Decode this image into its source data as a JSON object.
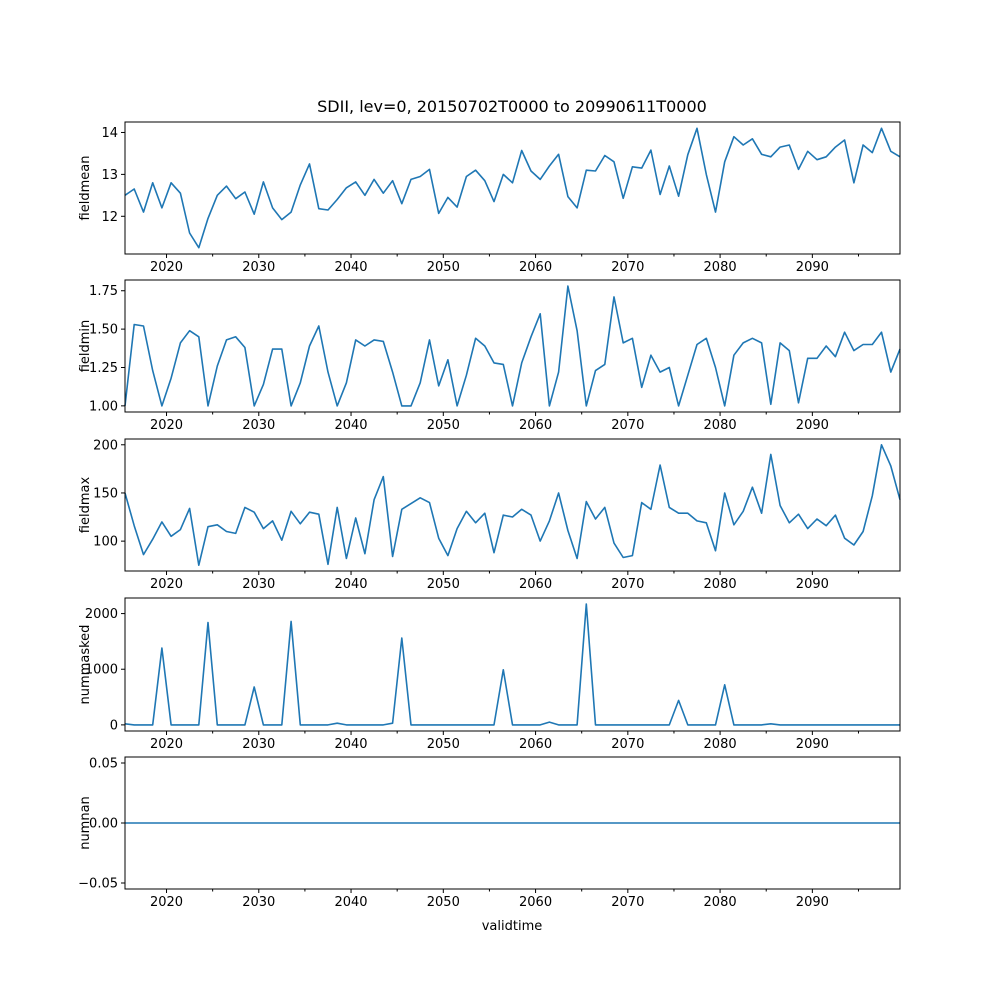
{
  "title": "SDII, lev=0, 20150702T0000 to 20990611T0000",
  "xlabel": "validtime",
  "xticks": [
    2020,
    2030,
    2040,
    2050,
    2060,
    2070,
    2080,
    2090
  ],
  "colors": {
    "line": "#1f77b4",
    "axis": "#000000",
    "background": "#ffffff"
  },
  "chart_data": [
    {
      "type": "line",
      "ylabel": "fieldmean",
      "xlim": [
        2015.5,
        2099.5
      ],
      "ylim": [
        11.1,
        14.25
      ],
      "yticks": [
        12,
        13,
        14
      ],
      "ytick_labels": [
        "12",
        "13",
        "14"
      ],
      "x_start": 2015.5,
      "x_step": 1,
      "values": [
        12.5,
        12.65,
        12.1,
        12.8,
        12.2,
        12.8,
        12.55,
        11.6,
        11.25,
        11.95,
        12.5,
        12.72,
        12.42,
        12.58,
        12.05,
        12.82,
        12.2,
        11.92,
        12.1,
        12.75,
        13.25,
        12.18,
        12.15,
        12.4,
        12.68,
        12.82,
        12.5,
        12.88,
        12.55,
        12.85,
        12.3,
        12.88,
        12.95,
        13.12,
        12.07,
        12.45,
        12.22,
        12.95,
        13.1,
        12.85,
        12.35,
        13.0,
        12.8,
        13.57,
        13.08,
        12.88,
        13.2,
        13.48,
        12.47,
        12.2,
        13.1,
        13.08,
        13.45,
        13.3,
        12.43,
        13.18,
        13.15,
        13.58,
        12.52,
        13.2,
        12.48,
        13.47,
        14.1,
        13.0,
        12.1,
        13.3,
        13.9,
        13.7,
        13.85,
        13.48,
        13.42,
        13.65,
        13.7,
        13.12,
        13.55,
        13.35,
        13.42,
        13.65,
        13.82,
        12.8,
        13.7,
        13.52,
        14.1,
        13.55,
        13.42
      ]
    },
    {
      "type": "line",
      "ylabel": "fieldmin",
      "xlim": [
        2015.5,
        2099.5
      ],
      "ylim": [
        0.96,
        1.82
      ],
      "yticks": [
        1.0,
        1.25,
        1.5,
        1.75
      ],
      "ytick_labels": [
        "1.00",
        "1.25",
        "1.50",
        "1.75"
      ],
      "x_start": 2015.5,
      "x_step": 1,
      "values": [
        1.0,
        1.53,
        1.52,
        1.23,
        1.0,
        1.18,
        1.41,
        1.49,
        1.45,
        1.0,
        1.26,
        1.43,
        1.45,
        1.38,
        1.0,
        1.14,
        1.37,
        1.37,
        1.0,
        1.15,
        1.39,
        1.52,
        1.22,
        1.0,
        1.15,
        1.43,
        1.39,
        1.43,
        1.42,
        1.22,
        1.0,
        1.0,
        1.15,
        1.43,
        1.13,
        1.3,
        1.0,
        1.2,
        1.44,
        1.39,
        1.28,
        1.27,
        1.0,
        1.28,
        1.45,
        1.6,
        1.0,
        1.22,
        1.78,
        1.49,
        1.0,
        1.23,
        1.27,
        1.71,
        1.41,
        1.44,
        1.12,
        1.33,
        1.22,
        1.25,
        1.0,
        1.2,
        1.4,
        1.44,
        1.25,
        1.0,
        1.33,
        1.41,
        1.44,
        1.41,
        1.01,
        1.41,
        1.36,
        1.02,
        1.31,
        1.31,
        1.39,
        1.32,
        1.48,
        1.36,
        1.4,
        1.4,
        1.48,
        1.22,
        1.37
      ]
    },
    {
      "type": "line",
      "ylabel": "fieldmax",
      "xlim": [
        2015.5,
        2099.5
      ],
      "ylim": [
        69,
        206
      ],
      "yticks": [
        100,
        150,
        200
      ],
      "ytick_labels": [
        "100",
        "150",
        "200"
      ],
      "x_start": 2015.5,
      "x_step": 1,
      "values": [
        150,
        116,
        86,
        102,
        120,
        105,
        112,
        134,
        75,
        115,
        117,
        110,
        108,
        135,
        130,
        113,
        121,
        101,
        131,
        118,
        130,
        128,
        76,
        135,
        82,
        124,
        87,
        143,
        167,
        84,
        133,
        139,
        145,
        140,
        103,
        85,
        113,
        131,
        119,
        129,
        88,
        127,
        125,
        133,
        127,
        100,
        121,
        150,
        111,
        82,
        141,
        123,
        135,
        98,
        83,
        85,
        140,
        133,
        179,
        135,
        129,
        129,
        121,
        119,
        90,
        150,
        117,
        131,
        156,
        129,
        190,
        137,
        119,
        128,
        113,
        123,
        116,
        127,
        103,
        96,
        110,
        147,
        200,
        178,
        143
      ]
    },
    {
      "type": "line",
      "ylabel": "nummasked",
      "xlim": [
        2015.5,
        2099.5
      ],
      "ylim": [
        -110,
        2280
      ],
      "yticks": [
        0,
        1000,
        2000
      ],
      "ytick_labels": [
        "0",
        "1000",
        "2000"
      ],
      "x_start": 2015.5,
      "x_step": 1,
      "values": [
        20,
        0,
        0,
        0,
        1380,
        0,
        0,
        0,
        0,
        1840,
        0,
        0,
        0,
        0,
        680,
        0,
        0,
        0,
        1860,
        0,
        0,
        0,
        0,
        30,
        0,
        0,
        0,
        0,
        0,
        30,
        1560,
        0,
        0,
        0,
        0,
        0,
        0,
        0,
        0,
        0,
        0,
        990,
        0,
        0,
        0,
        0,
        50,
        0,
        0,
        0,
        2170,
        0,
        0,
        0,
        0,
        0,
        0,
        0,
        0,
        0,
        440,
        0,
        0,
        0,
        0,
        720,
        0,
        0,
        0,
        0,
        20,
        0,
        0,
        0,
        0,
        0,
        0,
        0,
        0,
        0,
        0,
        0,
        0,
        0,
        0
      ]
    },
    {
      "type": "line",
      "ylabel": "numnan",
      "xlim": [
        2015.5,
        2099.5
      ],
      "ylim": [
        -0.055,
        0.055
      ],
      "yticks": [
        -0.05,
        0.0,
        0.05
      ],
      "ytick_labels": [
        "−0.05",
        "0.00",
        "0.05"
      ],
      "x_start": 2015.5,
      "x_step": 1,
      "values": [
        0,
        0,
        0,
        0,
        0,
        0,
        0,
        0,
        0,
        0,
        0,
        0,
        0,
        0,
        0,
        0,
        0,
        0,
        0,
        0,
        0,
        0,
        0,
        0,
        0,
        0,
        0,
        0,
        0,
        0,
        0,
        0,
        0,
        0,
        0,
        0,
        0,
        0,
        0,
        0,
        0,
        0,
        0,
        0,
        0,
        0,
        0,
        0,
        0,
        0,
        0,
        0,
        0,
        0,
        0,
        0,
        0,
        0,
        0,
        0,
        0,
        0,
        0,
        0,
        0,
        0,
        0,
        0,
        0,
        0,
        0,
        0,
        0,
        0,
        0,
        0,
        0,
        0,
        0,
        0,
        0,
        0,
        0,
        0,
        0
      ]
    }
  ]
}
